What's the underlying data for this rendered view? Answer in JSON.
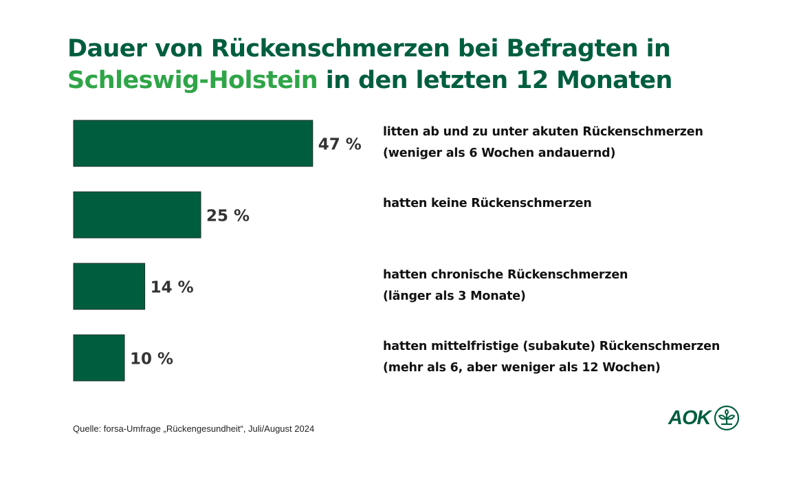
{
  "title": {
    "line1": "Dauer von Rückenschmerzen bei Befragten  in",
    "line2_highlight": "Schleswig-Holstein",
    "line2_rest": " in den letzten 12 Monaten"
  },
  "colors": {
    "bar": "#005e3f",
    "title": "#005e3f",
    "highlight": "#2fa548"
  },
  "chart_data": {
    "type": "bar",
    "orientation": "horizontal",
    "title": "Dauer von Rückenschmerzen bei Befragten in Schleswig-Holstein in den letzten 12 Monaten",
    "unit": "%",
    "categories": [
      "litten ab und zu unter akuten Rückenschmerzen (weniger als 6 Wochen andauernd)",
      "hatten keine Rückenschmerzen",
      "hatten chronische Rückenschmerzen (länger als 3 Monate)",
      "hatten mittelfristige (subakute) Rückenschmerzen (mehr als 6, aber weniger als 12 Wochen)"
    ],
    "values": [
      47,
      25,
      14,
      10
    ],
    "value_labels": [
      "47 %",
      "25 %",
      "14 %",
      "10 %"
    ],
    "descriptions": [
      [
        "litten ab und zu unter akuten Rückenschmerzen",
        "(weniger als 6 Wochen andauernd)"
      ],
      [
        "hatten keine Rückenschmerzen"
      ],
      [
        "hatten chronische Rückenschmerzen",
        "(länger als 3 Monate)"
      ],
      [
        "hatten mittelfristige (subakute) Rückenschmerzen",
        "(mehr als 6, aber weniger als 12 Wochen)"
      ]
    ],
    "xlabel": "",
    "ylabel": "",
    "grid": false
  },
  "source": "Quelle: forsa-Umfrage  „Rückengesundheit“, Juli/August 2024",
  "logo": {
    "text": "AOK",
    "icon": "aok-tree-icon"
  }
}
